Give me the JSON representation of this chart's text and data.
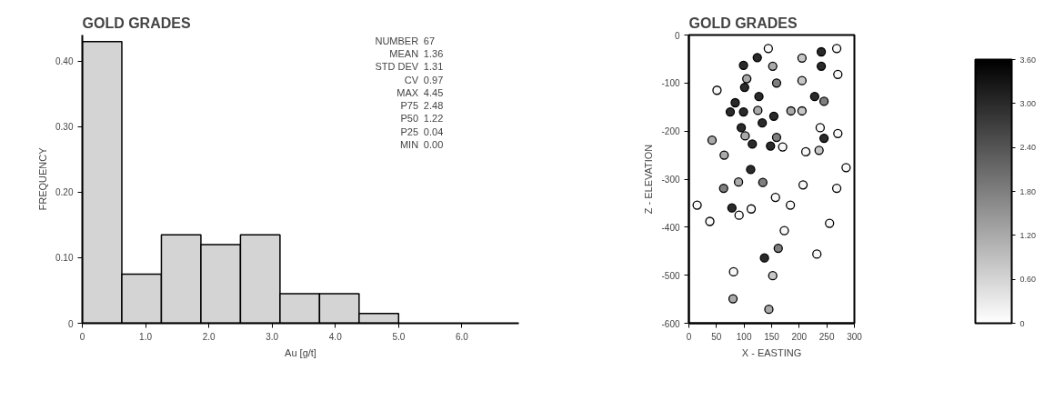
{
  "chart_data": [
    {
      "type": "histogram",
      "title": "GOLD GRADES",
      "xlabel": "Au [g/t]",
      "ylabel": "FREQUENCY",
      "bins": [
        0,
        0.625,
        1.25,
        1.875,
        2.5,
        3.125,
        3.75,
        4.375,
        5.0
      ],
      "values": [
        0.43,
        0.075,
        0.135,
        0.12,
        0.135,
        0.045,
        0.045,
        0.015
      ],
      "color": "#d4d4d4",
      "xlim": [
        0,
        6.9
      ],
      "ylim": [
        0,
        0.44
      ],
      "xticks": [
        0,
        {
          "value": 1,
          "label": "1.0"
        },
        {
          "value": 2,
          "label": "2.0"
        },
        {
          "value": 3,
          "label": "3.0"
        },
        {
          "value": 4,
          "label": "4.0"
        },
        {
          "value": 5,
          "label": "5.0"
        },
        {
          "value": 6,
          "label": "6.0"
        }
      ],
      "yticks": [
        0,
        {
          "value": 0.1,
          "label": "0.10"
        },
        {
          "value": 0.2,
          "label": "0.20"
        },
        {
          "value": 0.3,
          "label": "0.30"
        },
        {
          "value": 0.4,
          "label": "0.40"
        }
      ],
      "grid": false,
      "annotations": [
        "NUMBER 67",
        "MEAN 1.36",
        "STD DEV 1.31",
        "CV 0.97",
        "MAX 4.45",
        "P75 2.48",
        "P50 1.22",
        "P25 0.04",
        "MIN 0.00"
      ]
    },
    {
      "type": "scatter",
      "title": "GOLD GRADES",
      "xlabel": "X - EASTING",
      "ylabel": "Z - ELEVATION",
      "marker": "circle",
      "grid": false,
      "x": [
        144,
        124,
        99,
        152,
        105,
        159,
        51,
        101,
        127,
        84,
        75,
        99,
        125,
        154,
        133,
        95,
        102,
        115,
        148,
        159,
        42,
        64,
        285,
        112,
        90,
        134,
        207,
        63,
        268,
        157,
        15,
        184,
        78,
        113,
        91,
        38,
        255,
        173,
        162,
        232,
        137,
        81,
        152,
        80,
        145,
        268,
        240,
        205,
        240,
        270,
        205,
        228,
        245,
        185,
        205,
        270,
        238,
        245,
        236,
        212,
        170
      ],
      "values": [
        -28,
        -47,
        -63,
        -65,
        -91,
        -100,
        -115,
        -109,
        -128,
        -141,
        -160,
        -160,
        -157,
        -169,
        -183,
        -193,
        -210,
        -227,
        -231,
        -213,
        -219,
        -250,
        -276,
        -280,
        -306,
        -307,
        -312,
        -319,
        -319,
        -338,
        -354,
        -354,
        -360,
        -362,
        -375,
        -388,
        -392,
        -407,
        -444,
        -456,
        -464,
        -493,
        -501,
        -549,
        -571,
        -28,
        -35,
        -48,
        -65,
        -82,
        -95,
        -128,
        -138,
        -158,
        -158,
        -205,
        -193,
        -215,
        -240,
        -243,
        -233
      ],
      "cvalues": [
        0.1,
        3.0,
        3.0,
        1.2,
        1.2,
        1.8,
        0.1,
        3.0,
        3.0,
        3.0,
        3.0,
        3.0,
        1.2,
        3.0,
        3.0,
        3.0,
        1.2,
        3.0,
        3.0,
        1.8,
        1.2,
        1.2,
        0.1,
        3.0,
        1.2,
        1.8,
        0.1,
        1.8,
        0.1,
        0.1,
        0.1,
        0.1,
        3.0,
        0.1,
        0.1,
        0.1,
        0.1,
        0.1,
        1.8,
        0.1,
        3.0,
        0.1,
        0.8,
        1.2,
        1.2,
        0.1,
        3.0,
        0.8,
        3.0,
        0.1,
        0.8,
        3.0,
        1.8,
        1.2,
        0.8,
        0.1,
        0.1,
        3.0,
        0.8,
        0.1,
        0.1
      ],
      "xlim": [
        0,
        300
      ],
      "ylim": [
        -600,
        0
      ],
      "xticks": [
        0,
        50,
        100,
        150,
        200,
        250,
        300
      ],
      "yticks": [
        0,
        -100,
        -200,
        -300,
        -400,
        -500,
        -600
      ],
      "clim": [
        0,
        3.6
      ],
      "cticks": [
        0,
        {
          "value": 0.6,
          "label": "0.60"
        },
        {
          "value": 1.2,
          "label": "1.20"
        },
        {
          "value": 1.8,
          "label": "1.80"
        },
        {
          "value": 2.4,
          "label": "2.40"
        },
        {
          "value": 3.0,
          "label": "3.00"
        },
        {
          "value": 3.6,
          "label": "3.60"
        }
      ]
    }
  ]
}
